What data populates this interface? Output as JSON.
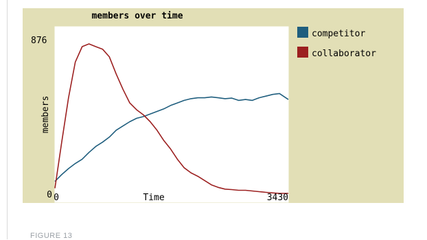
{
  "chart_data": {
    "type": "line",
    "title": "members over time",
    "xlabel": "Time",
    "ylabel": "members",
    "x_tick_labels": [
      "0",
      "3430"
    ],
    "y_tick_labels": [
      "0",
      "876"
    ],
    "xlim": [
      0,
      3430
    ],
    "ylim": [
      0,
      876
    ],
    "grid": false,
    "legend_position": "right",
    "series": [
      {
        "name": "competitor",
        "color": "#1f5e7e",
        "x": [
          0,
          100,
          200,
          300,
          400,
          500,
          600,
          700,
          800,
          900,
          1000,
          1100,
          1200,
          1300,
          1400,
          1500,
          1600,
          1700,
          1800,
          1900,
          2000,
          2100,
          2200,
          2300,
          2400,
          2500,
          2600,
          2700,
          2800,
          2900,
          3000,
          3100,
          3200,
          3300,
          3430
        ],
        "y": [
          70,
          110,
          145,
          175,
          200,
          240,
          275,
          300,
          330,
          370,
          395,
          420,
          440,
          450,
          465,
          480,
          495,
          515,
          530,
          545,
          555,
          560,
          560,
          565,
          560,
          555,
          558,
          545,
          550,
          545,
          560,
          570,
          580,
          585,
          550
        ]
      },
      {
        "name": "collaborator",
        "color": "#9c2020",
        "x": [
          0,
          100,
          200,
          300,
          400,
          500,
          600,
          700,
          800,
          900,
          1000,
          1100,
          1200,
          1300,
          1400,
          1500,
          1600,
          1700,
          1800,
          1900,
          2000,
          2100,
          2200,
          2300,
          2400,
          2500,
          2600,
          2700,
          2800,
          2900,
          3000,
          3100,
          3200,
          3300,
          3430
        ],
        "y": [
          30,
          300,
          560,
          770,
          860,
          876,
          860,
          845,
          800,
          700,
          610,
          530,
          490,
          460,
          420,
          370,
          310,
          260,
          200,
          150,
          120,
          100,
          75,
          50,
          35,
          25,
          22,
          18,
          18,
          14,
          10,
          6,
          3,
          0,
          0
        ]
      }
    ]
  },
  "figure_caption": "FIGURE 13"
}
